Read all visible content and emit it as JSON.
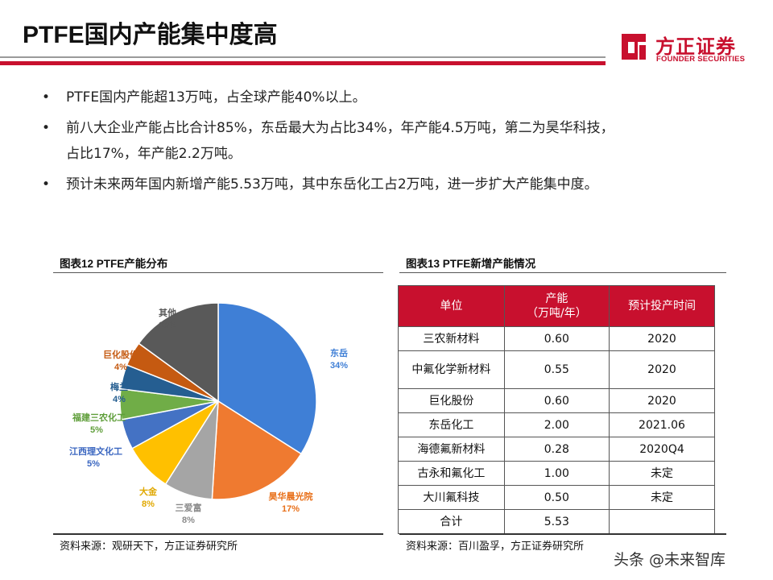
{
  "header": {
    "title": "PTFE国内产能集中度高",
    "logo_cn": "方正证券",
    "logo_en": "FOUNDER SECURITIES",
    "brand_color": "#c8102e"
  },
  "bullets": [
    {
      "marker": "•",
      "line1": "PTFE国内产能超13万吨，占全球产能40%以上。",
      "line2": ""
    },
    {
      "marker": "•",
      "line1": "前八大企业产能占比合计85%，东岳最大为占比34%，年产能4.5万吨，第二为昊华科技，",
      "line2": "占比17%，年产能2.2万吨。"
    },
    {
      "marker": "•",
      "line1": "预计未来两年国内新增产能5.53万吨，其中东岳化工占2万吨，进一步扩大产能集中度。",
      "line2": ""
    }
  ],
  "figure12": {
    "caption": "图表12 PTFE产能分布",
    "source": "资料来源：观研天下，方正证券研究所"
  },
  "chart_data": {
    "type": "pie",
    "title": "",
    "slices": [
      {
        "name": "东岳",
        "value": 34,
        "label": "34%",
        "color": "#3f7fd6",
        "text_color": "#3f7fd6"
      },
      {
        "name": "昊华晨光院",
        "value": 17,
        "label": "17%",
        "color": "#ef7a30",
        "text_color": "#e8701a"
      },
      {
        "name": "三爱富",
        "value": 8,
        "label": "8%",
        "color": "#a5a5a5",
        "text_color": "#8a8a8a"
      },
      {
        "name": "大金",
        "value": 8,
        "label": "8%",
        "color": "#ffc000",
        "text_color": "#e0a800"
      },
      {
        "name": "江西理文化工",
        "value": 5,
        "label": "5%",
        "color": "#4472c4",
        "text_color": "#3a66c0"
      },
      {
        "name": "福建三农化工",
        "value": 5,
        "label": "5%",
        "color": "#70ad47",
        "text_color": "#5f9e3a"
      },
      {
        "name": "梅兰",
        "value": 4,
        "label": "4%",
        "color": "#255e91",
        "text_color": "#255e91"
      },
      {
        "name": "巨化股份",
        "value": 4,
        "label": "4%",
        "color": "#c55a11",
        "text_color": "#c55a11"
      },
      {
        "name": "其他",
        "value": 15,
        "label": "15%",
        "color": "#595959",
        "text_color": "#595959"
      }
    ]
  },
  "figure13": {
    "caption": "图表13 PTFE新增产能情况",
    "source": "资料来源：百川盈孚，方正证券研究所",
    "headers": [
      "单位",
      "产能\n（万吨/年）",
      "预计投产时间"
    ],
    "rows": [
      [
        "三农新材料",
        "0.60",
        "2020"
      ],
      [
        "中氟化学新材料",
        "0.55",
        "2020"
      ],
      [
        "巨化股份",
        "0.60",
        "2020"
      ],
      [
        "东岳化工",
        "2.00",
        "2021.06"
      ],
      [
        "海德氟新材料",
        "0.28",
        "2020Q4"
      ],
      [
        "古永和氟化工",
        "1.00",
        "未定"
      ],
      [
        "大川氟科技",
        "0.50",
        "未定"
      ],
      [
        "合计",
        "5.53",
        ""
      ]
    ]
  },
  "watermark": "头条 @未来智库"
}
